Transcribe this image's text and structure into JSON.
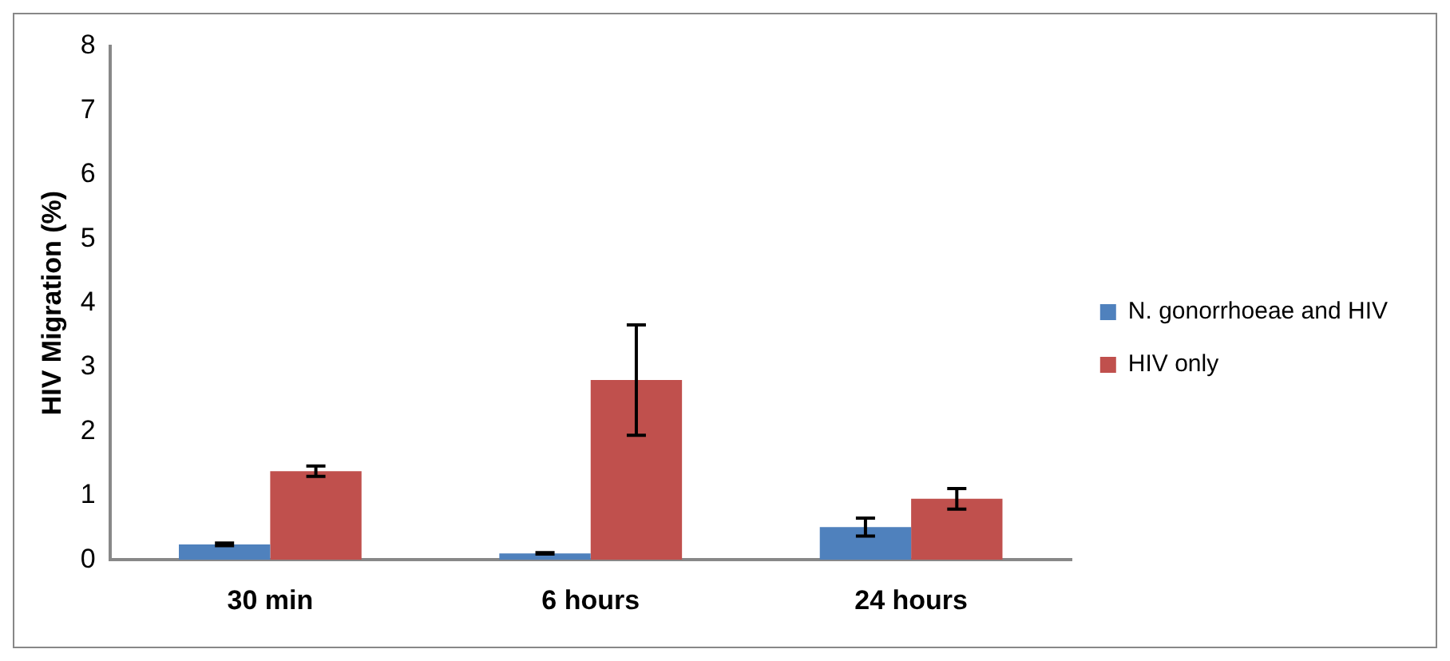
{
  "chart_data": {
    "type": "bar",
    "ylabel": "HIV Migration (%)",
    "categories": [
      "30 min",
      "6 hours",
      "24 hours"
    ],
    "series": [
      {
        "name": "N. gonorrhoeae and HIV",
        "color": "#4f81bd",
        "values": [
          0.24,
          0.1,
          0.51
        ],
        "errors": [
          0.02,
          0.01,
          0.14
        ]
      },
      {
        "name": "HIV only",
        "color": "#c0504d",
        "values": [
          1.38,
          2.8,
          0.95
        ],
        "errors": [
          0.08,
          0.86,
          0.16
        ]
      }
    ],
    "ylim": [
      0,
      8
    ],
    "yticks": [
      0,
      1,
      2,
      3,
      4,
      5,
      6,
      7,
      8
    ],
    "grid": false,
    "legend": "right"
  }
}
